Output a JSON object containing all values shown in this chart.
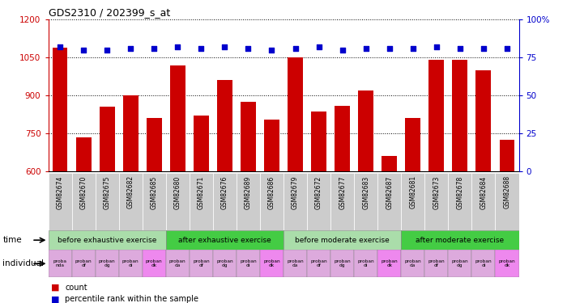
{
  "title": "GDS2310 / 202399_s_at",
  "samples": [
    "GSM82674",
    "GSM82670",
    "GSM82675",
    "GSM82682",
    "GSM82685",
    "GSM82680",
    "GSM82671",
    "GSM82676",
    "GSM82689",
    "GSM82686",
    "GSM82679",
    "GSM82672",
    "GSM82677",
    "GSM82683",
    "GSM82687",
    "GSM82681",
    "GSM82673",
    "GSM82678",
    "GSM82684",
    "GSM82688"
  ],
  "bar_values": [
    1090,
    733,
    855,
    900,
    812,
    1020,
    820,
    960,
    875,
    805,
    1050,
    835,
    858,
    920,
    660,
    810,
    1040,
    1040,
    1000,
    725
  ],
  "percentile_values": [
    82,
    80,
    80,
    81,
    81,
    82,
    81,
    82,
    81,
    80,
    81,
    82,
    80,
    81,
    81,
    81,
    82,
    81,
    81,
    81
  ],
  "bar_color": "#cc0000",
  "dot_color": "#0000cc",
  "ylim_left": [
    600,
    1200
  ],
  "ylim_right": [
    0,
    100
  ],
  "yticks_left": [
    600,
    750,
    900,
    1050,
    1200
  ],
  "yticks_right": [
    0,
    25,
    50,
    75,
    100
  ],
  "time_groups": [
    {
      "label": "before exhaustive exercise",
      "start": 0,
      "end": 5,
      "color": "#aaddaa"
    },
    {
      "label": "after exhaustive exercise",
      "start": 5,
      "end": 10,
      "color": "#44cc44"
    },
    {
      "label": "before moderate exercise",
      "start": 10,
      "end": 15,
      "color": "#aaddaa"
    },
    {
      "label": "after moderate exercise",
      "start": 15,
      "end": 20,
      "color": "#44cc44"
    }
  ],
  "individual_labels": [
    "proba\nnda",
    "proban\ndf",
    "proban\ndg",
    "proban\ndi",
    "proban\ndk",
    "proban\nda",
    "proban\ndf",
    "proban\ndg",
    "proban\ndi",
    "proban\ndk",
    "proban\nda",
    "proban\ndf",
    "proban\ndg",
    "proban\ndi",
    "proban\ndk",
    "proban\nda",
    "proban\ndf",
    "proban\ndg",
    "proban\ndi",
    "proban\ndk"
  ],
  "individual_colors": [
    "#ddaadd",
    "#ddaadd",
    "#ddaadd",
    "#ddaadd",
    "#ee88ee",
    "#ddaadd",
    "#ddaadd",
    "#ddaadd",
    "#ddaadd",
    "#ee88ee",
    "#ddaadd",
    "#ddaadd",
    "#ddaadd",
    "#ddaadd",
    "#ee88ee",
    "#ddaadd",
    "#ddaadd",
    "#ddaadd",
    "#ddaadd",
    "#ee88ee"
  ],
  "time_label": "time",
  "individual_label": "individual",
  "legend_bar": "count",
  "legend_dot": "percentile rank within the sample",
  "background_color": "#ffffff",
  "plot_bg_color": "#ffffff",
  "axis_color_left": "#cc0000",
  "axis_color_right": "#0000cc",
  "xticklabel_bg": "#cccccc"
}
